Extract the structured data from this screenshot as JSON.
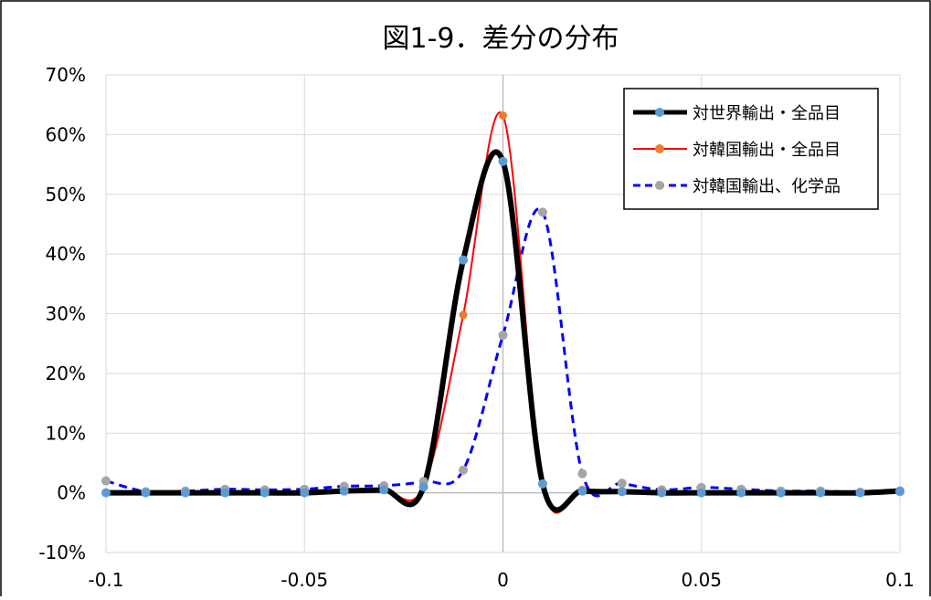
{
  "chart_data": {
    "type": "line",
    "title": "図1-9．差分の分布",
    "xlabel": "",
    "ylabel": "",
    "xlim": [
      -0.1,
      0.1
    ],
    "ylim": [
      -0.1,
      0.7
    ],
    "x_ticks": [
      -0.1,
      -0.05,
      0,
      0.05,
      0.1
    ],
    "x_tick_labels": [
      "-0.1",
      "-0.05",
      "0",
      "0.05",
      "0.1"
    ],
    "y_ticks": [
      -0.1,
      0,
      0.1,
      0.2,
      0.3,
      0.4,
      0.5,
      0.6,
      0.7
    ],
    "y_tick_labels": [
      "-10%",
      "0%",
      "10%",
      "20%",
      "30%",
      "40%",
      "50%",
      "60%",
      "70%"
    ],
    "grid": true,
    "legend_position": "top-right",
    "series": [
      {
        "name": "対世界輸出・全品目",
        "line_color": "#000000",
        "marker_color": "#5b9bd5",
        "dash": "solid",
        "x": [
          -0.1,
          -0.09,
          -0.08,
          -0.07,
          -0.06,
          -0.05,
          -0.04,
          -0.03,
          -0.02,
          -0.01,
          0,
          0.01,
          0.02,
          0.03,
          0.04,
          0.05,
          0.06,
          0.07,
          0.08,
          0.09,
          0.1
        ],
        "y": [
          0.0,
          0.0,
          0.0,
          0.0,
          0.0,
          0.0,
          0.003,
          0.005,
          0.01,
          0.39,
          0.555,
          0.015,
          0.003,
          0.002,
          0.0,
          0.0,
          0.0,
          0.0,
          0.0,
          0.0,
          0.003
        ]
      },
      {
        "name": "対韓国輸出・全品目",
        "line_color": "#ff0000",
        "marker_color": "#ed7d31",
        "dash": "solid",
        "x": [
          -0.1,
          -0.09,
          -0.08,
          -0.07,
          -0.06,
          -0.05,
          -0.04,
          -0.03,
          -0.02,
          -0.01,
          0,
          0.01,
          0.02,
          0.03,
          0.04,
          0.05,
          0.06,
          0.07,
          0.08,
          0.09,
          0.1
        ],
        "y": [
          0.0,
          0.0,
          0.0,
          0.0,
          0.0,
          0.0,
          0.003,
          0.005,
          0.01,
          0.298,
          0.632,
          0.015,
          0.005,
          0.003,
          0.002,
          0.0,
          0.0,
          0.0,
          0.0,
          0.0,
          0.003
        ]
      },
      {
        "name": "対韓国輸出、化学品",
        "line_color": "#0000ff",
        "marker_color": "#a5a5a5",
        "dash": "dashed",
        "x": [
          -0.1,
          -0.09,
          -0.08,
          -0.07,
          -0.06,
          -0.05,
          -0.04,
          -0.03,
          -0.02,
          -0.01,
          0,
          0.01,
          0.02,
          0.03,
          0.04,
          0.05,
          0.06,
          0.07,
          0.08,
          0.09,
          0.1
        ],
        "y": [
          0.02,
          0.002,
          0.003,
          0.006,
          0.005,
          0.006,
          0.011,
          0.012,
          0.019,
          0.038,
          0.264,
          0.47,
          0.032,
          0.016,
          0.005,
          0.009,
          0.006,
          0.003,
          0.003,
          0.001,
          0.002
        ]
      }
    ]
  }
}
